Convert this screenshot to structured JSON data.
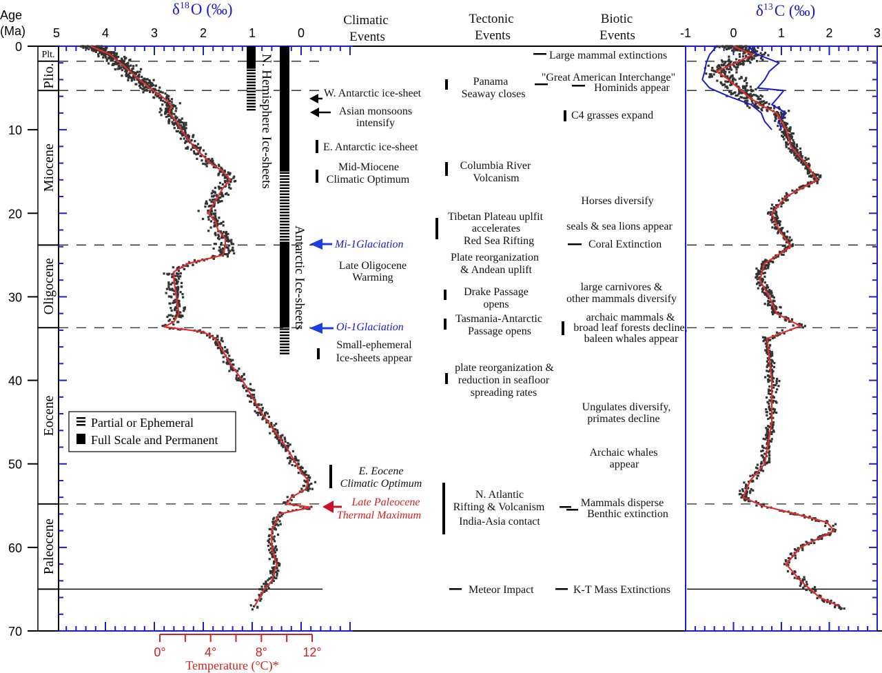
{
  "header": {
    "age_label": "Age",
    "age_unit": "(Ma)",
    "d18o_delta": "δ",
    "d18o_sup": "18",
    "d18o_rest": "O (‰)",
    "d13c_delta": "δ",
    "d13c_sup": "13",
    "d13c_rest": "C (‰)",
    "climatic": [
      "Climatic",
      "Events"
    ],
    "tectonic": [
      "Tectonic",
      "Events"
    ],
    "biotic": [
      "Biotic",
      "Events"
    ]
  },
  "colors": {
    "axis_blue": "#1a1ad0",
    "smooth_red": "#e0302a",
    "data_gray": "#333333",
    "temp_red": "#d42020",
    "event_blue": "#1a3ee0"
  },
  "epochs": [
    {
      "name": "Plt.",
      "start": 0,
      "end": 1.8
    },
    {
      "name": "Plio.",
      "start": 1.8,
      "end": 5.3
    },
    {
      "name": "Miocene",
      "start": 5.3,
      "end": 23.8
    },
    {
      "name": "Oligocene",
      "start": 23.8,
      "end": 33.7
    },
    {
      "name": "Eocene",
      "start": 33.7,
      "end": 54.8
    },
    {
      "name": "Paleocene",
      "start": 54.8,
      "end": 65
    }
  ],
  "ice_sheets": {
    "nh_label": "N. Hemisphere Ice-sheets",
    "ant_label": "Antarctic Ice-sheets",
    "nh": [
      {
        "type": "full",
        "from": 0,
        "to": 2.7
      },
      {
        "type": "partial",
        "from": 2.7,
        "to": 7.7
      }
    ],
    "ant": [
      {
        "type": "full",
        "from": 0,
        "to": 15
      },
      {
        "type": "partial",
        "from": 15,
        "to": 23.4
      },
      {
        "type": "full",
        "from": 23.4,
        "to": 33.7
      },
      {
        "type": "partial",
        "from": 33.7,
        "to": 37
      }
    ]
  },
  "legend": {
    "partial": "Partial or Ephemeral",
    "full": "Full Scale and Permanent"
  },
  "climatic_events": {
    "w_antarctic": "W. Antarctic ice-sheet",
    "asian": [
      "Asian monsoons",
      "intensify"
    ],
    "e_antarctic": "E. Antarctic ice-sheet",
    "mmco": [
      "Mid-Miocene",
      "Climatic Optimum"
    ],
    "mi1": "Mi-1Glaciation",
    "lo_warming": [
      "Late Oligocene",
      "Warming"
    ],
    "oi1": "Oi-1Glaciation",
    "small_ice": [
      "Small-ephemeral",
      "Ice-sheets appear"
    ],
    "eeco": [
      "E. Eocene",
      "Climatic Optimum"
    ],
    "petm": [
      "Late Paleocene",
      "Thermal Maximum"
    ]
  },
  "tectonic_events": {
    "panama": [
      "Panama",
      "Seaway closes"
    ],
    "columbia": [
      "Columbia River",
      "Volcanism"
    ],
    "tibet": [
      "Tibetan Plateau uplfit",
      "accelerates",
      "Red Sea Rifting"
    ],
    "plate1": [
      "Plate reorganization",
      "& Andean uplift"
    ],
    "drake": [
      "Drake Passage",
      "opens"
    ],
    "tasmania": [
      "Tasmania-Antarctic",
      "Passage opens"
    ],
    "plate2": [
      "plate reorganization &",
      "reduction in seafloor",
      "spreading rates"
    ],
    "natlantic": [
      "N. Atlantic",
      "Rifting & Volcanism",
      "India-Asia contact"
    ],
    "meteor": "Meteor Impact"
  },
  "biotic_events": {
    "large_mammal": "Large mammal extinctions",
    "gai": "\"Great American Interchange\"",
    "hominids": "Hominids appear",
    "c4": "C4 grasses expand",
    "horses": "Horses diversify",
    "seals": "seals & sea lions appear",
    "coral": "Coral Extinction",
    "carnivores": [
      "large carnivores &",
      "other mammals diversify"
    ],
    "archaic": [
      "archaic mammals &",
      "broad leaf forests decline,",
      "baleen whales appear"
    ],
    "ungulates": [
      "Ungulates diversify,",
      "primates decline"
    ],
    "whales": [
      "Archaic whales",
      "appear"
    ],
    "mammals": [
      "Mammals disperse",
      "Benthic extinction"
    ],
    "kt": "K-T Mass Extinctions"
  },
  "temperature_axis": {
    "title": "Temperature (°C)*",
    "ticks": [
      "0°",
      "4°",
      "8°",
      "12°"
    ],
    "range": [
      0,
      12
    ]
  },
  "chart_data": [
    {
      "type": "scatter",
      "title": "δ18O (‰)",
      "ylabel": "Age (Ma)",
      "ylim": [
        0,
        70
      ],
      "xlim": [
        5,
        -1
      ],
      "x_ticks": [
        "5",
        "4",
        "3",
        "2",
        "1",
        "0"
      ],
      "y_ticks": [
        "0",
        "10",
        "20",
        "30",
        "40",
        "50",
        "60",
        "70"
      ],
      "smoothed": {
        "age": [
          0,
          1,
          2,
          3,
          4,
          5,
          6,
          7,
          8,
          9,
          10,
          12,
          14,
          15,
          16,
          17,
          18,
          19,
          20,
          21,
          22,
          23,
          24,
          25,
          26,
          27,
          28,
          30,
          32,
          33,
          33.6,
          34.2,
          35,
          36,
          38,
          40,
          42,
          44,
          46,
          48,
          50,
          51,
          52,
          53,
          54,
          54.8,
          55.2,
          56,
          58,
          60,
          62,
          64,
          65,
          67
        ],
        "value": [
          4.3,
          3.9,
          3.7,
          3.5,
          3.3,
          3.1,
          2.85,
          2.65,
          2.7,
          2.55,
          2.45,
          2.2,
          1.85,
          1.6,
          1.45,
          1.6,
          1.7,
          1.8,
          1.9,
          1.75,
          1.7,
          1.55,
          1.55,
          1.6,
          2.3,
          2.6,
          2.6,
          2.55,
          2.5,
          2.6,
          2.8,
          2.0,
          1.75,
          1.65,
          1.45,
          1.2,
          1.0,
          0.8,
          0.55,
          0.3,
          0.1,
          0.0,
          -0.15,
          -0.1,
          0.2,
          0.3,
          -0.2,
          0.45,
          0.6,
          0.6,
          0.5,
          0.6,
          0.75,
          0.95
        ]
      }
    },
    {
      "type": "scatter",
      "title": "δ13C (‰)",
      "ylim": [
        0,
        70
      ],
      "xlim": [
        -1,
        3
      ],
      "x_ticks": [
        "-1",
        "0",
        "1",
        "2",
        "3"
      ],
      "smoothed": {
        "age": [
          0,
          1,
          2,
          3,
          4,
          5,
          6,
          7,
          8,
          9,
          10,
          12,
          14,
          16,
          18,
          20,
          22,
          24,
          26,
          28,
          30,
          32,
          33.5,
          35,
          40,
          45,
          50,
          52,
          54,
          55,
          56,
          57,
          58,
          60,
          62,
          64,
          66,
          67
        ],
        "value": [
          0.0,
          0.4,
          0.05,
          -0.35,
          -0.1,
          0.1,
          0.3,
          0.55,
          0.9,
          1.0,
          1.1,
          1.2,
          1.5,
          1.75,
          1.1,
          0.8,
          0.95,
          1.2,
          0.65,
          0.55,
          0.75,
          0.9,
          1.4,
          0.7,
          0.8,
          0.8,
          0.65,
          0.35,
          0.2,
          0.6,
          1.3,
          1.95,
          2.1,
          1.4,
          1.1,
          1.4,
          1.8,
          2.2
        ]
      },
      "envelope_low": {
        "age": [
          0,
          1,
          2,
          3,
          4,
          5,
          6,
          7,
          8,
          9,
          10
        ],
        "value": [
          -0.35,
          -0.5,
          -0.57,
          -0.6,
          -0.65,
          -0.5,
          -0.1,
          0.37,
          0.58,
          0.65,
          0.8
        ]
      },
      "envelope_high": {
        "age": [
          0,
          1,
          2,
          3,
          4,
          5,
          5.3,
          6,
          7,
          8,
          9,
          10
        ],
        "value": [
          0.3,
          0.5,
          0.95,
          0.75,
          0.65,
          0.5,
          1.05,
          0.95,
          0.8,
          1.1,
          0.95,
          1.0
        ]
      }
    }
  ]
}
